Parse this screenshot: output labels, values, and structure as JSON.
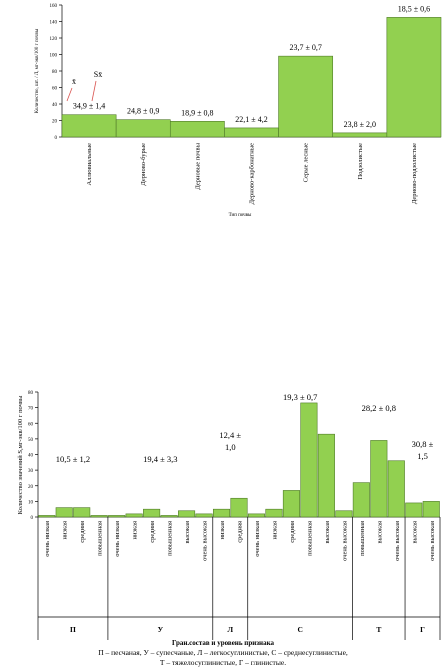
{
  "chart_data": [
    {
      "type": "bar",
      "ylabel": "Количество, шт. / Л, мг-экв/100 г почвы",
      "xlabel": "Тип почвы",
      "categories": [
        "Аллювиальные",
        "Дерново-бурые",
        "Дерновые почвы",
        "Дерново-карбонатные",
        "Серые лесные",
        "Подзолистые",
        "Дерново-подзолистые"
      ],
      "values": [
        27,
        21,
        19,
        11,
        98,
        5,
        145
      ],
      "annotations": [
        "34,9 ± 1,4",
        "24,8 ± 0,9",
        "18,9 ± 0,8",
        "22,1 ± 4,2",
        "23,7 ± 0,7",
        "23,8 ± 2,0",
        "18,5 ± 0,6"
      ],
      "markers": [
        "x̄",
        "Sx̄"
      ],
      "color": "#92d050",
      "ylim": [
        0,
        160
      ],
      "yticks": [
        0,
        20,
        40,
        60,
        80,
        100,
        120,
        140,
        160
      ]
    },
    {
      "type": "grouped_bar",
      "ylabel": "Количество значений S,мг-экв/100 г почвы",
      "xlabel": "Гран.состав и уровень признака",
      "groups": [
        {
          "name": "П",
          "annotation": "10,5 ± 1,2",
          "categories": [
            "очень низкая",
            "низкая",
            "средняя",
            "повышенная"
          ],
          "values": [
            1,
            6,
            6,
            1
          ]
        },
        {
          "name": "У",
          "annotation": "19,4 ± 3,3",
          "categories": [
            "очень низкая",
            "низкая",
            "средняя",
            "повышенная",
            "высокая",
            "очень высокая"
          ],
          "values": [
            1,
            2,
            5,
            1,
            4,
            2
          ]
        },
        {
          "name": "Л",
          "annotation": "12,4 ±\n1,0",
          "categories": [
            "низкая",
            "средняя"
          ],
          "values": [
            5,
            12
          ]
        },
        {
          "name": "С",
          "annotation": "19,3 ± 0,7",
          "categories": [
            "очень низкая",
            "низкая",
            "средняя",
            "повышенная",
            "высокая",
            "очень высокая"
          ],
          "values": [
            2,
            5,
            17,
            73,
            53,
            4
          ]
        },
        {
          "name": "Т",
          "annotation": "28,2 ± 0,8",
          "categories": [
            "повышенная",
            "высокая",
            "очень высокая"
          ],
          "values": [
            22,
            49,
            36
          ]
        },
        {
          "name": "Г",
          "annotation": "30,8 ±\n1,5",
          "categories": [
            "высокая",
            "очень высокая"
          ],
          "values": [
            9,
            10
          ]
        }
      ],
      "color": "#92d050",
      "ylim": [
        0,
        80
      ],
      "yticks": [
        0,
        10,
        20,
        30,
        40,
        50,
        60,
        70,
        80
      ]
    }
  ],
  "footnote": [
    "П – песчаная,  У – супесчаные,  Л – легкосуглинистые,  С – среднесуглинистые,",
    "Т – тяжелосуглинистые,  Г – глинистые."
  ]
}
